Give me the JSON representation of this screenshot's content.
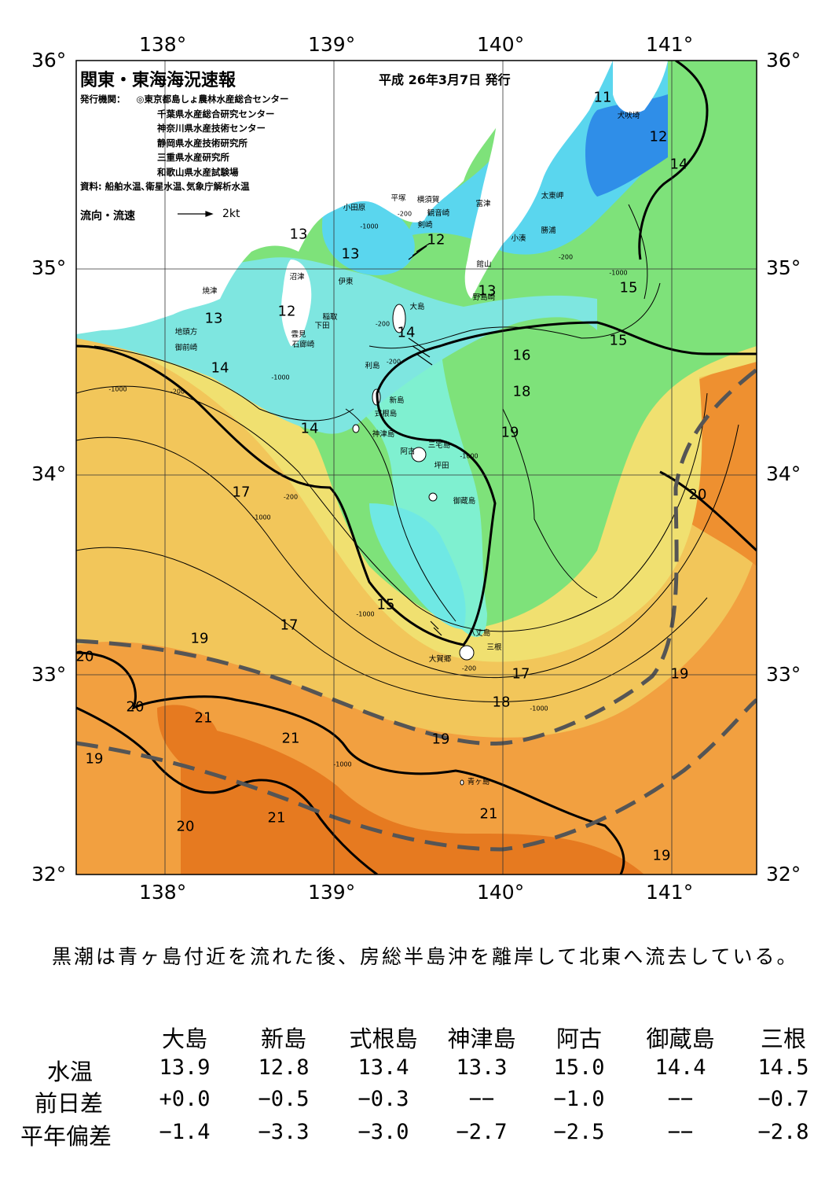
{
  "title": "関東・東海海況速報",
  "issue_date": "平成 26年3月7日 発行",
  "publisher_label": "発行機関：",
  "publishers": [
    "◎東京都島しょ農林水産総合センター",
    "千葉県水産総合研究センター",
    "神奈川県水産技術センター",
    "静岡県水産技術研究所",
    "三重県水産研究所",
    "和歌山県水産試験場"
  ],
  "source": "資料: 船舶水温､衛星水温､気象庁解析水温",
  "legend": {
    "label": "流向・流速",
    "scale": "2kt"
  },
  "longitudes_top": [
    "138°",
    "139°",
    "140°",
    "141°"
  ],
  "longitudes_bottom": [
    "138°",
    "139°",
    "140°",
    "141°"
  ],
  "latitudes_left": [
    "36°",
    "35°",
    "34°",
    "33°",
    "32°"
  ],
  "latitudes_right": [
    "36°",
    "35°",
    "34°",
    "33°",
    "32°"
  ],
  "temp_labels": [
    "11",
    "12",
    "14",
    "13",
    "12",
    "13",
    "13",
    "12",
    "13",
    "13",
    "15",
    "15",
    "16",
    "14",
    "18",
    "19",
    "14",
    "14",
    "17",
    "20",
    "15",
    "17",
    "19",
    "19",
    "20",
    "17",
    "20",
    "21",
    "18",
    "21",
    "19",
    "19",
    "20",
    "21",
    "21",
    "19"
  ],
  "place_names": [
    "犬吠埼",
    "太東岬",
    "勝浦",
    "小湊",
    "富津",
    "館山",
    "野島崎",
    "横須賀",
    "観音崎",
    "剣崎",
    "平塚",
    "小田原",
    "沼津",
    "伊東",
    "焼津",
    "稲取",
    "下田",
    "雲見",
    "石廊崎",
    "地頭方",
    "御前崎",
    "大島",
    "利島",
    "新島",
    "式根島",
    "神津島",
    "三宅島",
    "阿古",
    "坪田",
    "御蔵島",
    "八丈島",
    "三根",
    "大賀郷",
    "青ヶ島"
  ],
  "contour_labels": [
    "-200",
    "-1000",
    "-200",
    "-200",
    "-1000",
    "-200",
    "-1000",
    "-200",
    "-1000",
    "-200",
    "-1000",
    "-1000",
    "-1000",
    "-200",
    "-1000",
    "-1000"
  ],
  "comment": "黒潮は青ヶ島付近を流れた後、房総半島沖を離岸して北東へ流去している。",
  "table": {
    "columns": [
      "大島",
      "新島",
      "式根島",
      "神津島",
      "阿古",
      "御蔵島",
      "三根"
    ],
    "rows": [
      {
        "label": "水温",
        "values": [
          "13.9",
          "12.8",
          "13.4",
          "13.3",
          "15.0",
          "14.4",
          "14.5"
        ]
      },
      {
        "label": "前日差",
        "values": [
          "+0.0",
          "−0.5",
          "−0.3",
          "−−",
          "−1.0",
          "−−",
          "−0.7"
        ]
      },
      {
        "label": "平年偏差",
        "values": [
          "−1.4",
          "−3.3",
          "−3.0",
          "−2.7",
          "−2.5",
          "−−",
          "−2.8"
        ]
      }
    ]
  },
  "colors": {
    "land": "#ffffff",
    "cold": "#2f8ee8",
    "cyan": "#4fd6e4",
    "green": "#6fe07a",
    "yellow": "#e8e06a",
    "orange": "#f0a040",
    "dark_orange": "#e07018",
    "kuroshio_axis": "#555555"
  }
}
